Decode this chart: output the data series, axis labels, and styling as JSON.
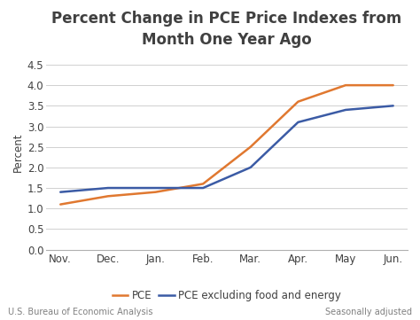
{
  "title": "Percent Change in PCE Price Indexes from\nMonth One Year Ago",
  "ylabel": "Percent",
  "x_labels": [
    "Nov.",
    "Dec.",
    "Jan.",
    "Feb.",
    "Mar.",
    "Apr.",
    "May",
    "Jun."
  ],
  "pce_values": [
    1.1,
    1.3,
    1.4,
    1.6,
    2.5,
    3.6,
    4.0,
    4.0
  ],
  "pce_ex_values": [
    1.4,
    1.5,
    1.5,
    1.5,
    2.0,
    3.1,
    3.4,
    3.5
  ],
  "pce_color": "#E07830",
  "pce_ex_color": "#3B5BA5",
  "pce_label": "PCE",
  "pce_ex_label": "PCE excluding food and energy",
  "ylim_min": 0.0,
  "ylim_max": 4.75,
  "yticks": [
    0.0,
    0.5,
    1.0,
    1.5,
    2.0,
    2.5,
    3.0,
    3.5,
    4.0,
    4.5
  ],
  "footer_left": "U.S. Bureau of Economic Analysis",
  "footer_right": "Seasonally adjusted",
  "line_width": 1.8,
  "title_fontsize": 12,
  "title_color": "#404040",
  "axis_fontsize": 8.5,
  "legend_fontsize": 8.5,
  "footer_fontsize": 7.0,
  "footer_color": "#808080",
  "background_color": "#ffffff",
  "grid_color": "#d0d0d0"
}
